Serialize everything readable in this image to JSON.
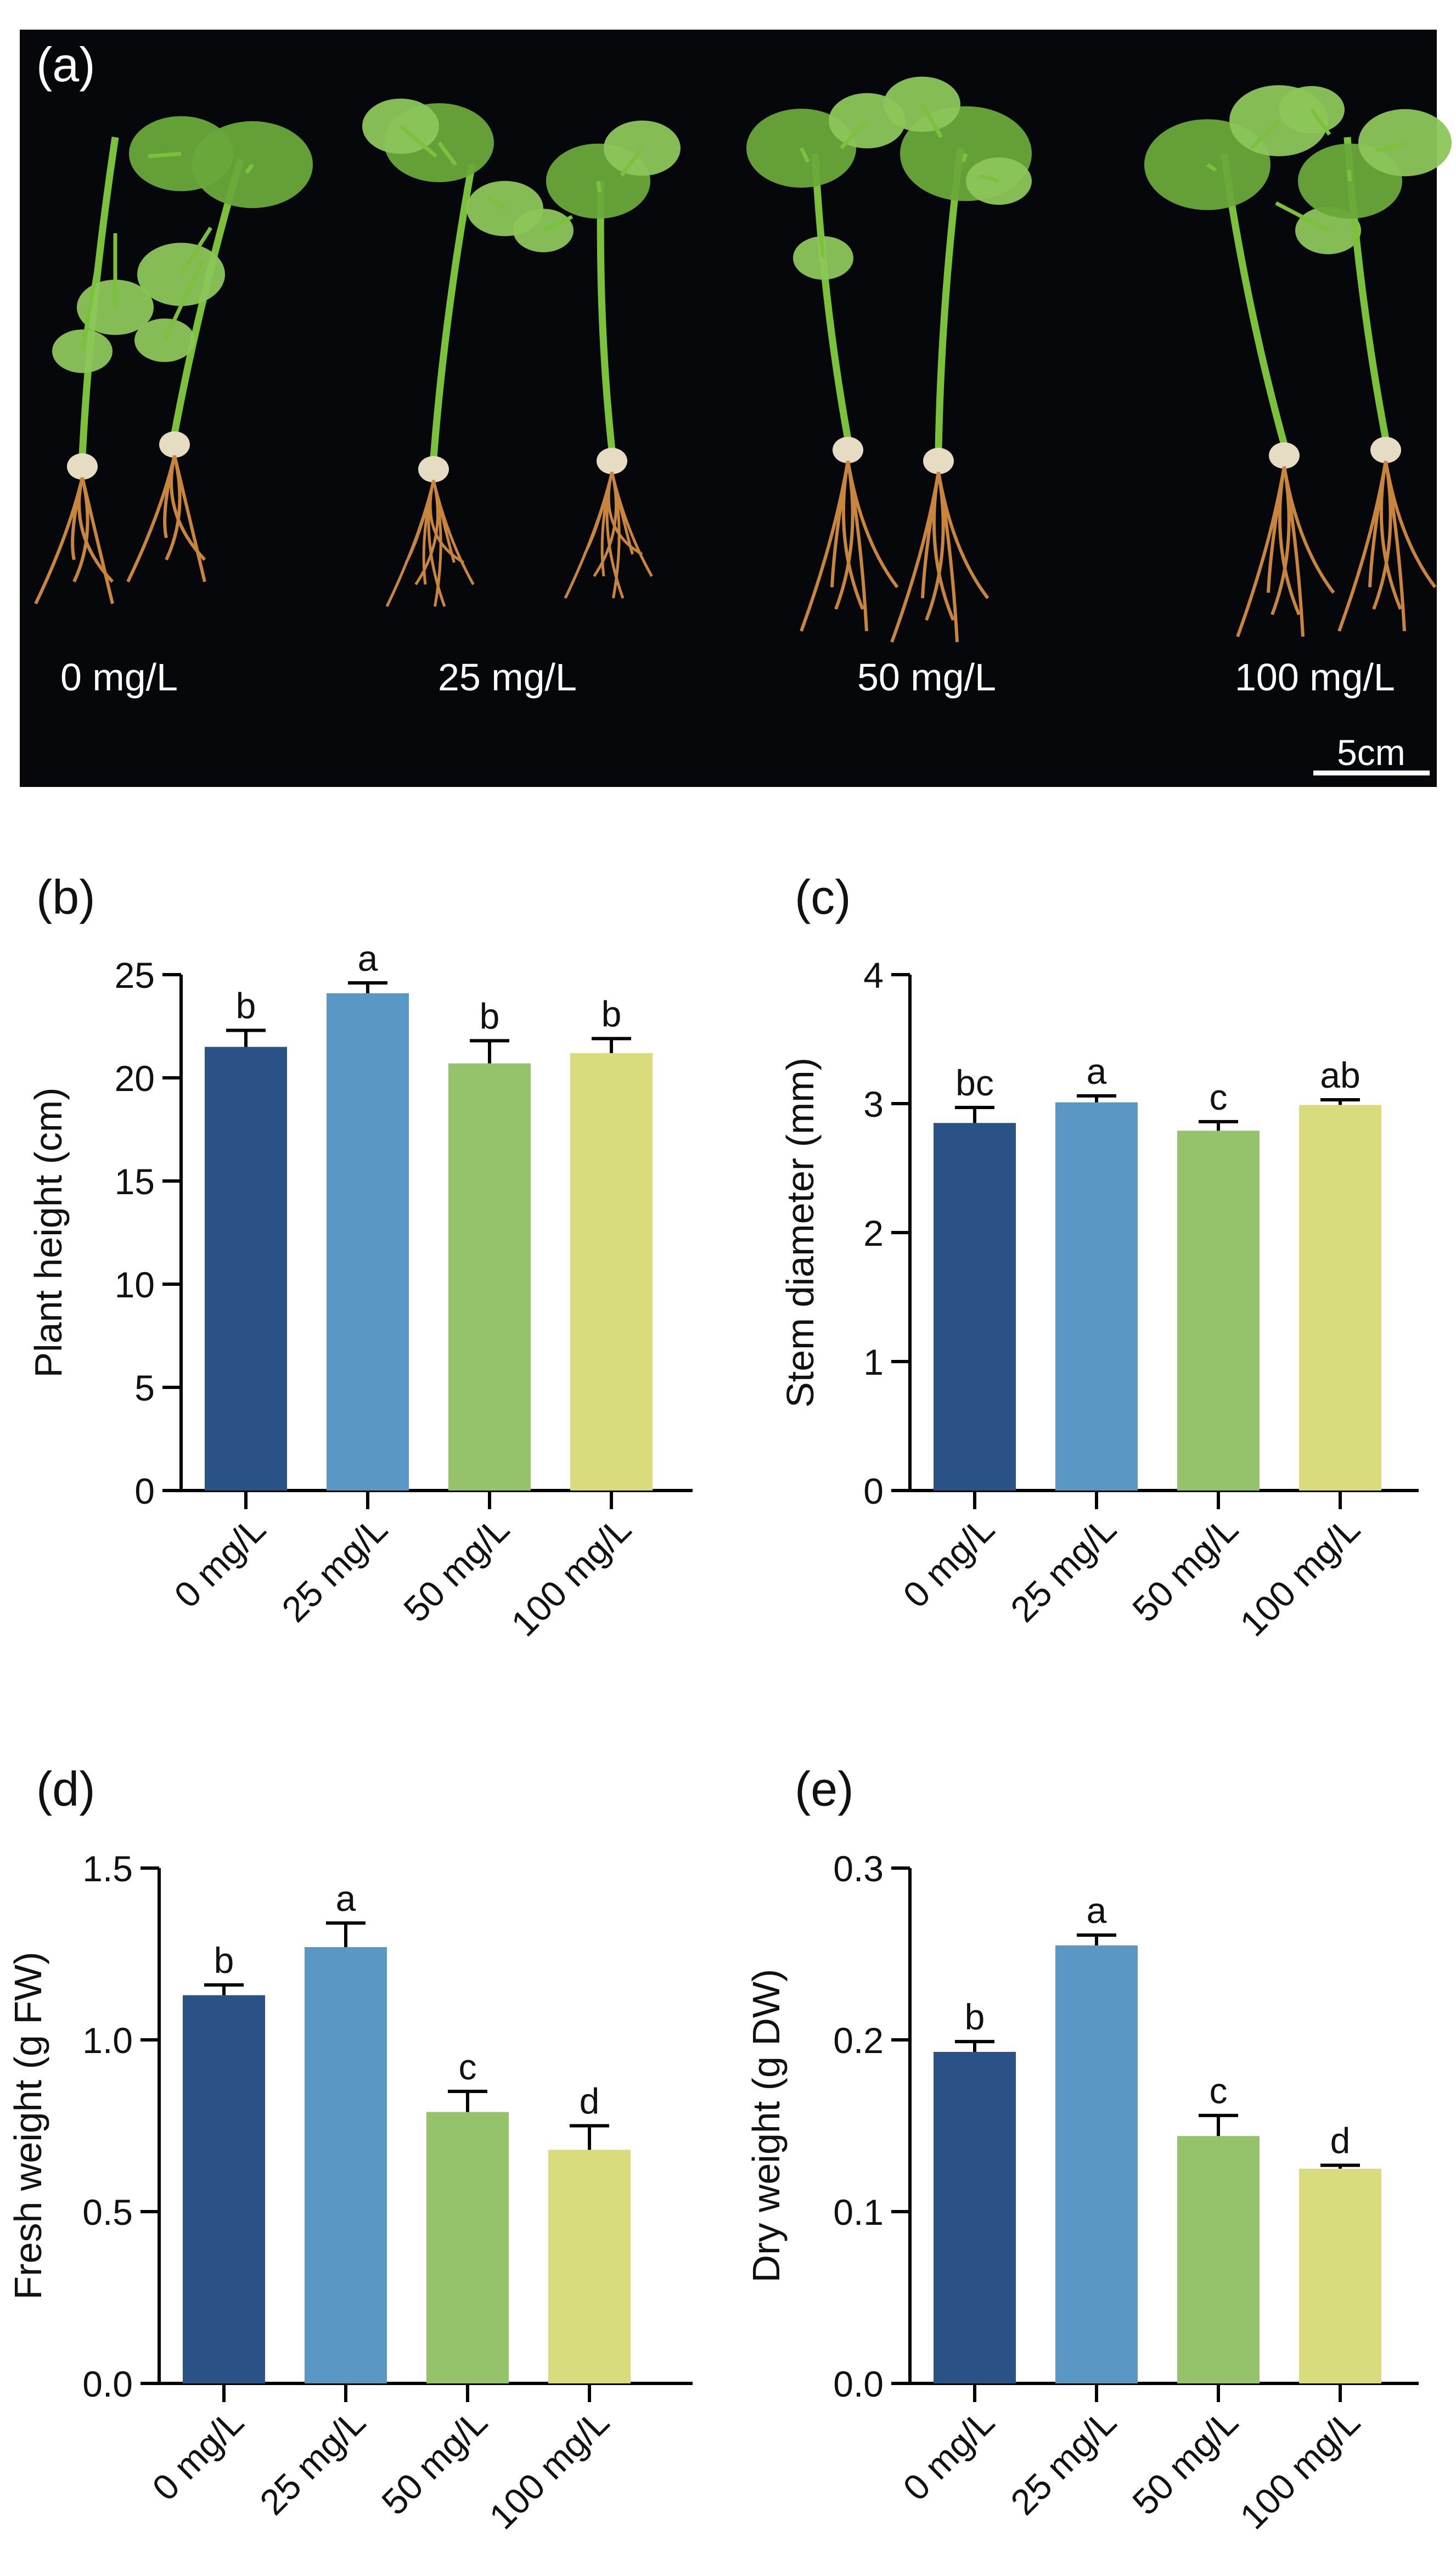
{
  "photo": {
    "panel_label": "(a)",
    "treatment_labels": [
      "0 mg/L",
      "25 mg/L",
      "50 mg/L",
      "100 mg/L"
    ],
    "scale_bar_label": "5cm",
    "colors": {
      "background": "#06070a",
      "stem": "#7cc13c",
      "leaf": "#6aa83a",
      "leaf_light": "#8cc65a",
      "root": "#c8853e",
      "seed": "#e6dcc4"
    }
  },
  "chart_data": [
    {
      "type": "bar",
      "panel_label": "(b)",
      "ylabel": "Plant height (cm)",
      "xlabel": "",
      "categories": [
        "0 mg/L",
        "25 mg/L",
        "50 mg/L",
        "100 mg/L"
      ],
      "values": [
        21.5,
        24.1,
        20.7,
        21.2
      ],
      "errors": [
        0.8,
        0.5,
        1.1,
        0.7
      ],
      "significance": [
        "b",
        "a",
        "b",
        "b"
      ],
      "ylim": [
        0,
        25
      ],
      "yticks": [
        0,
        5,
        10,
        15,
        20,
        25
      ],
      "ytick_labels": [
        "0",
        "5",
        "10",
        "15",
        "20",
        "25"
      ]
    },
    {
      "type": "bar",
      "panel_label": "(c)",
      "ylabel": "Stem diameter (mm)",
      "xlabel": "",
      "categories": [
        "0 mg/L",
        "25 mg/L",
        "50 mg/L",
        "100 mg/L"
      ],
      "values": [
        2.85,
        3.01,
        2.79,
        2.99
      ],
      "errors": [
        0.12,
        0.05,
        0.07,
        0.04
      ],
      "significance": [
        "bc",
        "a",
        "c",
        "ab"
      ],
      "ylim": [
        0,
        4
      ],
      "yticks": [
        0,
        1,
        2,
        3,
        4
      ],
      "ytick_labels": [
        "0",
        "1",
        "2",
        "3",
        "4"
      ]
    },
    {
      "type": "bar",
      "panel_label": "(d)",
      "ylabel": "Fresh weight (g FW)",
      "xlabel": "",
      "categories": [
        "0 mg/L",
        "25 mg/L",
        "50 mg/L",
        "100 mg/L"
      ],
      "values": [
        1.13,
        1.27,
        0.79,
        0.68
      ],
      "errors": [
        0.03,
        0.07,
        0.06,
        0.07
      ],
      "significance": [
        "b",
        "a",
        "c",
        "d"
      ],
      "ylim": [
        0,
        1.5
      ],
      "yticks": [
        0,
        0.5,
        1.0,
        1.5
      ],
      "ytick_labels": [
        "0.0",
        "0.5",
        "1.0",
        "1.5"
      ]
    },
    {
      "type": "bar",
      "panel_label": "(e)",
      "ylabel": "Dry weight (g DW)",
      "xlabel": "",
      "categories": [
        "0 mg/L",
        "25 mg/L",
        "50 mg/L",
        "100 mg/L"
      ],
      "values": [
        0.193,
        0.255,
        0.144,
        0.125
      ],
      "errors": [
        0.006,
        0.006,
        0.012,
        0.002
      ],
      "significance": [
        "b",
        "a",
        "c",
        "d"
      ],
      "ylim": [
        0,
        0.3
      ],
      "yticks": [
        0,
        0.1,
        0.2,
        0.3
      ],
      "ytick_labels": [
        "0.0",
        "0.1",
        "0.2",
        "0.3"
      ]
    }
  ],
  "bar_colors": [
    "#2b5286",
    "#5b97c4",
    "#95c36b",
    "#d8dc7c"
  ]
}
